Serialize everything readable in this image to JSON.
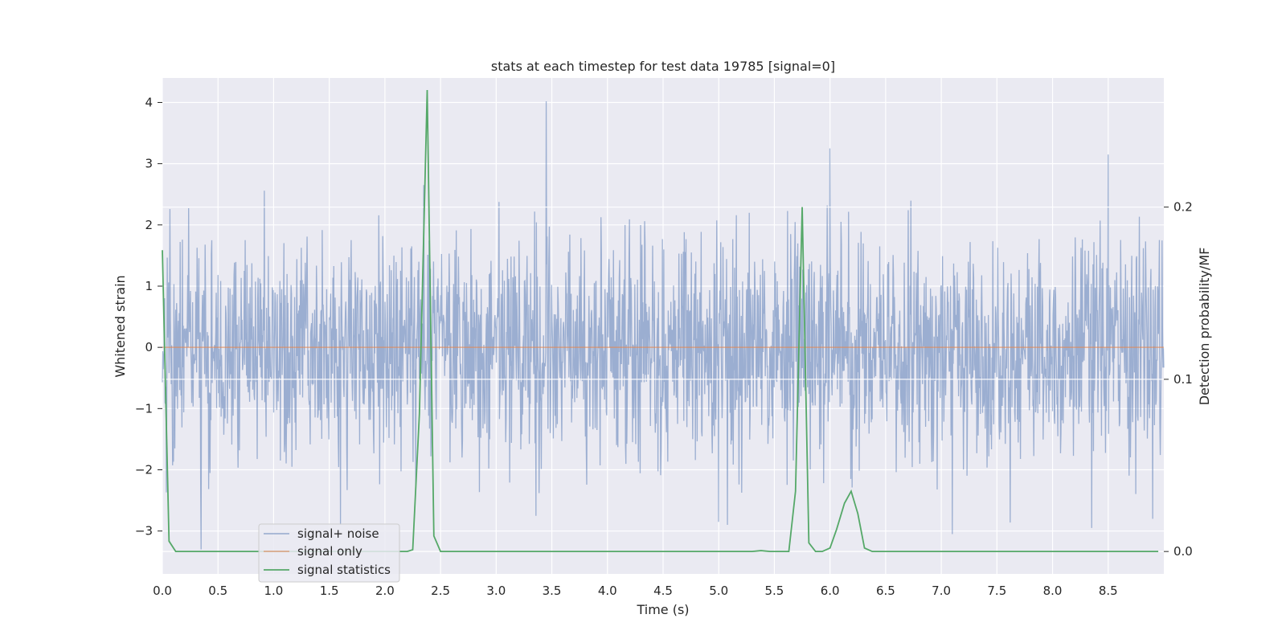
{
  "chart_data": {
    "type": "line",
    "title": "stats at each timestep for test data 19785 [signal=0]",
    "xlabel": "Time (s)",
    "ylabel": "Whitened strain",
    "y2label": "Detection probability/MF",
    "xlim": [
      0,
      9
    ],
    "ylim": [
      -3.7,
      4.4
    ],
    "y2lim": [
      -0.013,
      0.275
    ],
    "x_ticks": [
      "0.0",
      "0.5",
      "1.0",
      "1.5",
      "2.0",
      "2.5",
      "3.0",
      "3.5",
      "4.0",
      "4.5",
      "5.0",
      "5.5",
      "6.0",
      "6.5",
      "7.0",
      "7.5",
      "8.0",
      "8.5"
    ],
    "x_tick_values": [
      0,
      0.5,
      1,
      1.5,
      2,
      2.5,
      3,
      3.5,
      4,
      4.5,
      5,
      5.5,
      6,
      6.5,
      7,
      7.5,
      8,
      8.5
    ],
    "y_ticks": [
      "−3",
      "−2",
      "−1",
      "0",
      "1",
      "2",
      "3",
      "4"
    ],
    "y_tick_values": [
      -3,
      -2,
      -1,
      0,
      1,
      2,
      3,
      4
    ],
    "y2_ticks": [
      "0.0",
      "0.1",
      "0.2"
    ],
    "y2_tick_values": [
      0.0,
      0.1,
      0.2
    ],
    "grid": true,
    "legend_position": "lower-left",
    "series": [
      {
        "name": "signal+ noise",
        "color": "#4c72b0",
        "axis": "left",
        "kind": "noise",
        "x_range": [
          0,
          9
        ],
        "samples": 2250,
        "std": 0.88,
        "spikes": [
          [
            0.35,
            -3.3
          ],
          [
            2.35,
            2.65
          ],
          [
            3.45,
            4.02
          ],
          [
            6.0,
            3.25
          ],
          [
            5.0,
            -2.85
          ],
          [
            7.1,
            -3.05
          ],
          [
            8.5,
            3.15
          ],
          [
            8.9,
            -2.8
          ],
          [
            8.35,
            -2.95
          ],
          [
            1.6,
            -2.9
          ]
        ]
      },
      {
        "name": "signal only",
        "color": "#dd8452",
        "axis": "left",
        "x": [
          0,
          9
        ],
        "y": [
          0,
          0
        ]
      },
      {
        "name": "signal statistics",
        "color": "#55a868",
        "axis": "right",
        "x": [
          0.0,
          0.06,
          0.12,
          0.2,
          0.5,
          1.0,
          1.5,
          2.0,
          2.2,
          2.25,
          2.31,
          2.38,
          2.44,
          2.5,
          3.0,
          4.0,
          5.0,
          5.3,
          5.38,
          5.46,
          5.63,
          5.69,
          5.75,
          5.81,
          5.87,
          5.93,
          6.0,
          6.06,
          6.13,
          6.19,
          6.25,
          6.31,
          6.38,
          7.0,
          8.0,
          8.95
        ],
        "y": [
          0.175,
          0.006,
          0.0,
          0.0,
          0.0,
          0.0,
          0.0,
          0.0,
          0.0,
          0.001,
          0.08,
          0.268,
          0.009,
          0.0,
          0.0,
          0.0,
          0.0,
          0.0,
          0.0005,
          0.0,
          0.0,
          0.035,
          0.2,
          0.005,
          0.0,
          0.0,
          0.002,
          0.013,
          0.028,
          0.035,
          0.022,
          0.002,
          0.0,
          0.0,
          0.0,
          0.0
        ]
      }
    ]
  }
}
